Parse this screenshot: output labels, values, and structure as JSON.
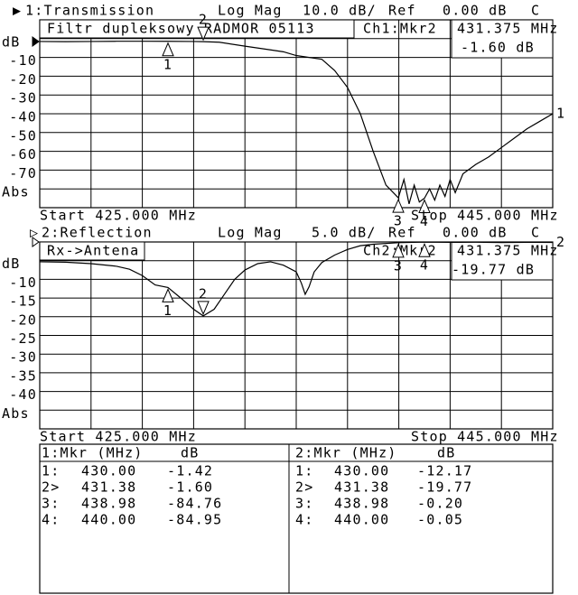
{
  "chart_data": [
    {
      "type": "line",
      "title": "1:Transmission",
      "format": "Log Mag",
      "scale": "10.0 dB/",
      "ref_label": "Ref",
      "ref_value": "0.00 dB",
      "flag": "C",
      "annotation": "Filtr dupleksowy RADMOR 05113",
      "readout": [
        "Ch1:Mkr2",
        "431.375 MHz",
        "-1.60 dB"
      ],
      "start_label": "Start 425.000 MHz",
      "stop_label": "Stop 445.000 MHz",
      "trace_label": "1",
      "color": "#000000",
      "grid": true,
      "xlim": [
        425,
        445
      ],
      "xticks": [
        425,
        427,
        429,
        431,
        433,
        435,
        437,
        439,
        441,
        443,
        445
      ],
      "ylim": [
        -90,
        10
      ],
      "yticks": [
        {
          "value": 0,
          "label": "dB"
        },
        -10,
        -20,
        -30,
        -40,
        -50,
        -60,
        -70,
        {
          "value": -80,
          "label": "Abs"
        }
      ],
      "x": [
        425,
        426,
        427,
        428,
        429,
        430,
        431,
        431.375,
        432,
        433,
        434,
        434.5,
        435,
        436,
        436.5,
        437,
        437.5,
        438,
        438.5,
        438.98,
        439.2,
        439.4,
        439.6,
        439.8,
        440,
        440.2,
        440.4,
        440.6,
        440.8,
        441,
        441.2,
        441.5,
        442,
        442.5,
        443,
        443.5,
        444,
        444.5,
        445
      ],
      "values": [
        -1.5,
        -1.6,
        -1.5,
        -1.4,
        -1.4,
        -1.42,
        -1.5,
        -1.6,
        -1.9,
        -4,
        -6,
        -7,
        -9,
        -11,
        -17,
        -26,
        -40,
        -60,
        -78,
        -84.76,
        -75,
        -88,
        -78,
        -87,
        -84.95,
        -80,
        -86,
        -78,
        -84,
        -75,
        -82,
        -72,
        -67,
        -63,
        -58,
        -53,
        -48,
        -44,
        -40
      ],
      "markers": [
        {
          "label": "1",
          "x": 430,
          "y": -1.42
        },
        {
          "label": "2",
          "x": 431.375,
          "y": -1.6,
          "active": true
        },
        {
          "label": "3",
          "x": 438.98,
          "y": -84.76
        },
        {
          "label": "4",
          "x": 440,
          "y": -84.95
        }
      ]
    },
    {
      "type": "line",
      "title": "2:Reflection",
      "format": "Log Mag",
      "scale": "5.0 dB/",
      "ref_label": "Ref",
      "ref_value": "0.00 dB",
      "flag": "C",
      "annotation": "Rx->Antena",
      "readout": [
        "Ch2:Mkr2",
        "431.375 MHz",
        "-19.77 dB"
      ],
      "start_label": "Start 425.000 MHz",
      "stop_label": "Stop 445.000 MHz",
      "trace_label": "2",
      "color": "#000000",
      "grid": true,
      "xlim": [
        425,
        445
      ],
      "xticks": [
        425,
        427,
        429,
        431,
        433,
        435,
        437,
        439,
        441,
        443,
        445
      ],
      "ylim": [
        -50,
        0
      ],
      "yticks": [
        {
          "value": -5,
          "label": "dB"
        },
        -10,
        -15,
        -20,
        -25,
        -30,
        -35,
        -40,
        {
          "value": -45,
          "label": "Abs"
        }
      ],
      "x": [
        425,
        426,
        427,
        428,
        428.5,
        429,
        429.5,
        430,
        430.5,
        431,
        431.375,
        431.8,
        432.2,
        432.6,
        433,
        433.5,
        434,
        434.5,
        435,
        435.2,
        435.35,
        435.5,
        435.7,
        436,
        436.5,
        437,
        437.5,
        438,
        438.98,
        440,
        441,
        442,
        443,
        444,
        445
      ],
      "values": [
        -5.3,
        -5.4,
        -5.8,
        -6.5,
        -7.3,
        -9,
        -11.5,
        -12.17,
        -15,
        -18,
        -19.77,
        -18,
        -14,
        -10,
        -7.5,
        -5.8,
        -5.3,
        -6.2,
        -8,
        -11,
        -14,
        -12,
        -8,
        -5.5,
        -3.5,
        -2,
        -1,
        -0.6,
        -0.2,
        -0.05,
        -0.1,
        -0.08,
        -0.15,
        -0.1,
        -0.12
      ],
      "markers": [
        {
          "label": "1",
          "x": 430,
          "y": -12.17
        },
        {
          "label": "2",
          "x": 431.375,
          "y": -19.77,
          "active": true
        },
        {
          "label": "3",
          "x": 438.98,
          "y": -0.2
        },
        {
          "label": "4",
          "x": 440,
          "y": -0.05
        }
      ]
    }
  ],
  "marker_tables": [
    {
      "header": [
        "1:Mkr (MHz)",
        "dB"
      ],
      "rows": [
        [
          "1:",
          "430.00",
          "-1.42"
        ],
        [
          "2>",
          "431.38",
          "-1.60"
        ],
        [
          "3:",
          "438.98",
          "-84.76"
        ],
        [
          "4:",
          "440.00",
          "-84.95"
        ]
      ]
    },
    {
      "header": [
        "2:Mkr (MHz)",
        "dB"
      ],
      "rows": [
        [
          "1:",
          "430.00",
          "-12.17"
        ],
        [
          "2>",
          "431.38",
          "-19.77"
        ],
        [
          "3:",
          "438.98",
          "-0.20"
        ],
        [
          "4:",
          "440.00",
          "-0.05"
        ]
      ]
    }
  ]
}
